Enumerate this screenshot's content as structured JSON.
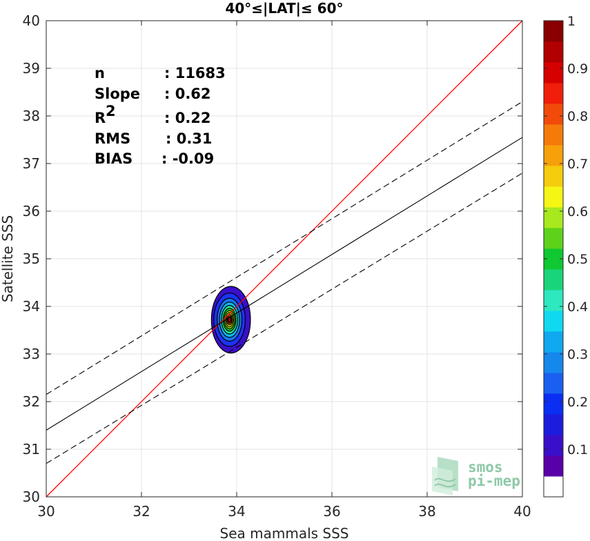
{
  "chart_data": {
    "type": "heatmap",
    "title": "40°≤|LAT|≤ 60°",
    "xlabel": "Sea mammals SSS",
    "ylabel": "Satellite SSS",
    "xlim": [
      30,
      40
    ],
    "ylim": [
      30,
      40
    ],
    "xticks": [
      "30",
      "32",
      "34",
      "36",
      "38",
      "40"
    ],
    "yticks": [
      "30",
      "31",
      "32",
      "33",
      "34",
      "35",
      "36",
      "37",
      "38",
      "39",
      "40"
    ],
    "grid": true,
    "stats": [
      {
        "label": "n",
        "value": ": 11683"
      },
      {
        "label": "Slope",
        "value": ": 0.62"
      },
      {
        "label": "R",
        "sup": "2",
        "value": ": 0.22"
      },
      {
        "label": "RMS",
        "value": ": 0.31"
      },
      {
        "label": "BIAS",
        "value": ": -0.09"
      }
    ],
    "lines": {
      "one_to_one": {
        "slope": 1,
        "intercept": 0,
        "color": "#ff0000"
      },
      "regression": {
        "x": [
          30,
          40
        ],
        "y": [
          31.4,
          37.55
        ],
        "color": "#000000"
      },
      "upper_band": {
        "x": [
          30,
          40
        ],
        "y": [
          32.15,
          38.3
        ],
        "color": "#000000",
        "dashed": true
      },
      "lower_band": {
        "x": [
          30,
          40
        ],
        "y": [
          30.7,
          36.8
        ],
        "color": "#000000",
        "dashed": true
      }
    },
    "density": {
      "center": [
        33.85,
        33.72
      ],
      "contours": [
        {
          "level": 0.05,
          "rx": 0.41,
          "ry": 0.7,
          "color": "#3a0fc9"
        },
        {
          "level": 0.15,
          "rx": 0.33,
          "ry": 0.56,
          "color": "#1c33f5"
        },
        {
          "level": 0.25,
          "rx": 0.26,
          "ry": 0.45,
          "color": "#1a73f0"
        },
        {
          "level": 0.35,
          "rx": 0.21,
          "ry": 0.37,
          "color": "#12b5ec"
        },
        {
          "level": 0.45,
          "rx": 0.17,
          "ry": 0.3,
          "color": "#1ee8a0"
        },
        {
          "level": 0.55,
          "rx": 0.135,
          "ry": 0.24,
          "color": "#22c622"
        },
        {
          "level": 0.62,
          "rx": 0.11,
          "ry": 0.19,
          "color": "#aee81e"
        },
        {
          "level": 0.7,
          "rx": 0.085,
          "ry": 0.15,
          "color": "#f7f514"
        },
        {
          "level": 0.78,
          "rx": 0.065,
          "ry": 0.11,
          "color": "#f59a0a"
        },
        {
          "level": 0.86,
          "rx": 0.045,
          "ry": 0.08,
          "color": "#f0420a"
        },
        {
          "level": 0.94,
          "rx": 0.028,
          "ry": 0.05,
          "color": "#c80000"
        }
      ]
    },
    "colorbar": {
      "range": [
        0,
        1
      ],
      "ticks": [
        "0.1",
        "0.2",
        "0.3",
        "0.4",
        "0.5",
        "0.6",
        "0.7",
        "0.8",
        "0.9",
        "1"
      ],
      "colors": [
        "#ffffff",
        "#5a00a8",
        "#3a0fc9",
        "#1c1cdf",
        "#0a2ef2",
        "#1a5ff0",
        "#1588ec",
        "#10a8ee",
        "#10d8f0",
        "#2ee8c0",
        "#19d57a",
        "#10c832",
        "#5ed21a",
        "#a8e81e",
        "#f6f614",
        "#f6cc0e",
        "#f6a00a",
        "#f57a0a",
        "#f24a0a",
        "#f01e0a",
        "#d60000",
        "#b20000",
        "#8a0000"
      ]
    }
  },
  "logo": {
    "line1": "smos",
    "line2": "pi-mep"
  }
}
